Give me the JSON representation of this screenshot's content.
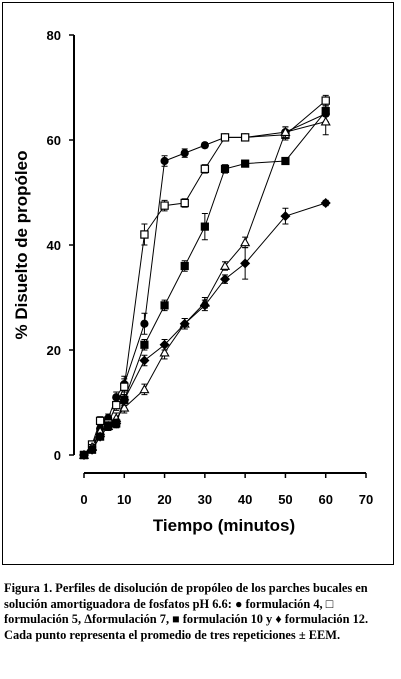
{
  "chart_data": {
    "type": "line",
    "xlabel": "Tiempo (minutos)",
    "ylabel": "% Disuelto de propóleo",
    "xlim": [
      0,
      70
    ],
    "ylim": [
      0,
      80
    ],
    "xticks": [
      0,
      10,
      20,
      30,
      40,
      50,
      60,
      70
    ],
    "yticks": [
      0,
      20,
      40,
      60,
      80
    ],
    "grid": false,
    "series": [
      {
        "marker": "filled-circle",
        "x": [
          0,
          2,
          4,
          6,
          8,
          10,
          15,
          20,
          25,
          30,
          35,
          40,
          50,
          60
        ],
        "y": [
          0,
          2,
          5,
          7,
          11,
          13.5,
          25,
          56,
          57.5,
          59,
          60.5,
          60.5,
          61.5,
          65
        ],
        "err": [
          0,
          0.5,
          0.5,
          0.8,
          1,
          1.5,
          2,
          1,
          0.8,
          0.5,
          0.5,
          0.5,
          1,
          1.5
        ]
      },
      {
        "marker": "open-square",
        "x": [
          0,
          2,
          4,
          6,
          8,
          10,
          15,
          20,
          25,
          30,
          35,
          40,
          50,
          60
        ],
        "y": [
          0,
          2,
          6.5,
          6,
          9.5,
          13,
          42,
          47.5,
          48,
          54.5,
          60.5,
          60.5,
          61,
          67.5
        ],
        "err": [
          0,
          0.5,
          0.8,
          0.8,
          1,
          1.5,
          2,
          1,
          0.8,
          0.8,
          0.5,
          0.5,
          1,
          1
        ]
      },
      {
        "marker": "open-triangle",
        "x": [
          0,
          2,
          4,
          6,
          8,
          10,
          15,
          20,
          25,
          30,
          35,
          40,
          50,
          60
        ],
        "y": [
          0,
          1.5,
          4.5,
          5.5,
          7,
          9,
          12.5,
          19.5,
          25,
          29,
          36,
          40.5,
          61.5,
          63.5
        ],
        "err": [
          0,
          0.5,
          0.8,
          0.8,
          1,
          1,
          1,
          1.2,
          1,
          1,
          0.8,
          1,
          1,
          2.5
        ]
      },
      {
        "marker": "filled-square",
        "x": [
          0,
          2,
          4,
          6,
          8,
          10,
          15,
          20,
          25,
          30,
          35,
          40,
          50,
          60
        ],
        "y": [
          0,
          1,
          3.5,
          5.5,
          6,
          10.5,
          21,
          28.5,
          36,
          43.5,
          54.5,
          55.5,
          56,
          65.5
        ],
        "err": [
          0,
          0.5,
          0.5,
          0.8,
          0.8,
          1,
          1,
          1,
          1,
          2.5,
          0.8,
          0.5,
          0.5,
          1
        ]
      },
      {
        "marker": "filled-diamond",
        "x": [
          0,
          2,
          4,
          6,
          8,
          10,
          15,
          20,
          25,
          30,
          35,
          40,
          50,
          60
        ],
        "y": [
          0,
          1,
          3.5,
          5.5,
          6,
          10.5,
          18,
          21,
          25,
          28.5,
          33.5,
          36.5,
          45.5,
          48
        ],
        "err": [
          0,
          0.5,
          0.5,
          0.8,
          0.8,
          1,
          1,
          1,
          1,
          1,
          0.8,
          3,
          1.5,
          0.5
        ]
      }
    ]
  },
  "caption": {
    "label": "Figura 1.",
    "text_1": " Perfiles de disolución de propóleo de los parches bucales en solución amortiguadora de fosfatos pH 6.6:",
    "sym_circle": "●",
    "text_2": " formulación 4, ",
    "sym_open_square": "□",
    "text_3": " formulación 5, ",
    "sym_triangle": "Δ",
    "text_4": "formulación 7, ",
    "sym_filled_square": "■",
    "text_5": " formulación 10 y ",
    "sym_diamond": "♦",
    "text_6": " formulación 12. Cada punto representa el promedio de tres repeticiones ± EEM."
  }
}
